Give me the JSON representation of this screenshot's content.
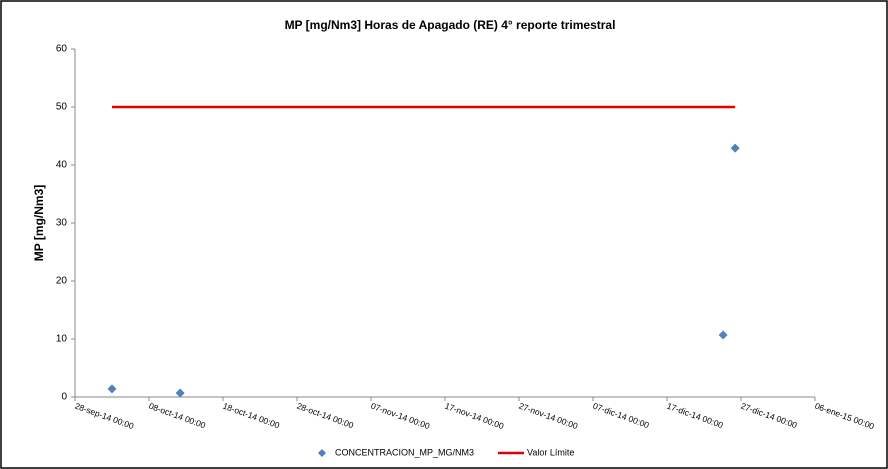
{
  "chart_data": {
    "type": "scatter",
    "title": "MP [mg/Nm3] Horas de Apagado (RE)  4° reporte trimestral",
    "y_label": "MP [mg/Nm3]",
    "series": [
      {
        "name": "CONCENTRACION_MP_MG/NM3",
        "type": "scatter",
        "color": "#4f81bd",
        "x": [
          "2014-10-03T00:00",
          "2014-10-12T05:00",
          "2014-12-24T14:00",
          "2014-12-26T05:00"
        ],
        "values": [
          1.4,
          0.7,
          10.7,
          42.9
        ]
      },
      {
        "name": "Valor Límite",
        "type": "line",
        "color": "#e00000",
        "x": [
          "2014-10-03T00:00",
          "2014-12-26T05:00"
        ],
        "values": [
          50,
          50
        ]
      }
    ],
    "xlim": [
      "2014-09-28T00:00",
      "2015-01-06T00:00"
    ],
    "xticks": [
      {
        "value": "2014-09-28T00:00",
        "label": "28-sep-14 00:00"
      },
      {
        "value": "2014-10-08T00:00",
        "label": "08-oct-14 00:00"
      },
      {
        "value": "2014-10-18T00:00",
        "label": "18-oct-14 00:00"
      },
      {
        "value": "2014-10-28T00:00",
        "label": "28-oct-14 00:00"
      },
      {
        "value": "2014-11-07T00:00",
        "label": "07-nov-14 00:00"
      },
      {
        "value": "2014-11-17T00:00",
        "label": "17-nov-14 00:00"
      },
      {
        "value": "2014-11-27T00:00",
        "label": "27-nov-14 00:00"
      },
      {
        "value": "2014-12-07T00:00",
        "label": "07-dic-14 00:00"
      },
      {
        "value": "2014-12-17T00:00",
        "label": "17-dic-14 00:00"
      },
      {
        "value": "2014-12-27T00:00",
        "label": "27-dic-14 00:00"
      },
      {
        "value": "2015-01-06T00:00",
        "label": "06-ene-15 00:00"
      }
    ],
    "ylim": [
      0,
      60
    ],
    "yticks": [
      0,
      10,
      20,
      30,
      40,
      50,
      60
    ],
    "grid": false,
    "legend": "bottom"
  }
}
